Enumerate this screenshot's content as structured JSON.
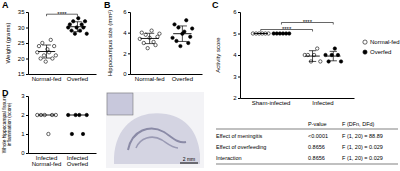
{
  "chart_data": [
    {
      "type": "strip",
      "panel": "A",
      "y_label": "Weight (grams)",
      "categories": [
        "Normal-fed",
        "Overfed"
      ],
      "values": [
        [
          22,
          24,
          20,
          25,
          21,
          19,
          23,
          22,
          26,
          20,
          24,
          21
        ],
        [
          30,
          31,
          29,
          32,
          28,
          30,
          33,
          29,
          31,
          30,
          32,
          28
        ]
      ],
      "mean": [
        22.25,
        30.25
      ],
      "error": [
        2.1,
        1.6
      ],
      "colors": [
        "#ffffff",
        "#000000"
      ],
      "ylim": [
        15,
        35
      ],
      "yticks": [
        15,
        20,
        25,
        30,
        35
      ],
      "annotations": [
        {
          "text": "****",
          "from": [
            "Normal-fed"
          ],
          "to": [
            "Overfed"
          ]
        }
      ]
    },
    {
      "type": "strip",
      "panel": "B",
      "y_label": "Hippocampus size (mm²)",
      "categories": [
        "Normal-fed",
        "Overfed"
      ],
      "values": [
        [
          3.4,
          4.0,
          3.0,
          3.8,
          2.5,
          3.5,
          4.2,
          3.1,
          2.8,
          3.6,
          3.9
        ],
        [
          3.5,
          4.8,
          3.2,
          4.5,
          2.7,
          3.9,
          4.1,
          5.2,
          3.0,
          3.6,
          4.4
        ]
      ],
      "mean": [
        3.44,
        3.9
      ],
      "error": [
        0.5,
        0.75
      ],
      "colors": [
        "#ffffff",
        "#000000"
      ],
      "ylim": [
        0,
        6
      ],
      "yticks": [
        0,
        2,
        4,
        6
      ]
    },
    {
      "type": "strip",
      "panel": "C",
      "y_label": "Activity score",
      "categories": [
        "Sham-infected",
        "Infected"
      ],
      "series": [
        {
          "name": "Normal-fed",
          "color": "#ffffff",
          "marker": "circle",
          "values": [
            [
              5,
              5,
              5,
              5,
              5,
              5
            ],
            [
              4,
              4,
              3.7,
              4,
              4.3,
              3.7
            ]
          ],
          "mean": [
            5,
            3.95
          ],
          "error": [
            0,
            0.25
          ]
        },
        {
          "name": "Overfed",
          "color": "#000000",
          "marker": "circle",
          "values": [
            [
              5,
              5,
              5,
              5,
              5,
              5
            ],
            [
              4,
              3.7,
              4,
              4.3,
              4,
              3.7
            ]
          ],
          "mean": [
            5,
            3.95
          ],
          "error": [
            0,
            0.22
          ]
        }
      ],
      "ylim": [
        2,
        6
      ],
      "yticks": [
        2,
        3,
        4,
        5,
        6
      ],
      "legend": "right",
      "annotations": [
        {
          "text": "****",
          "from": [
            "Sham-infected",
            "Normal-fed"
          ],
          "to": [
            "Infected",
            "Normal-fed"
          ]
        },
        {
          "text": "****",
          "from": [
            "Sham-infected",
            "Overfed"
          ],
          "to": [
            "Infected",
            "Overfed"
          ]
        }
      ]
    },
    {
      "type": "strip",
      "panel": "D",
      "y_label": "Whole hippocampal fissure inflammation (score)",
      "categories": [
        "Infected Normal-fed",
        "Infected Overfed"
      ],
      "values": [
        [
          2,
          2,
          2,
          1,
          2,
          2
        ],
        [
          2,
          1,
          2,
          2,
          1,
          2
        ]
      ],
      "median": [
        2,
        2
      ],
      "colors": [
        "#ffffff",
        "#000000"
      ],
      "ylim": [
        0,
        3
      ],
      "yticks": [
        0,
        1,
        2,
        3
      ]
    }
  ],
  "image_panel": {
    "scale_bar": "2 mm"
  },
  "table": {
    "header": [
      "P-value",
      "F (DFn, DFd)"
    ],
    "rows": [
      [
        "Effect of meningitis",
        "<0.0001",
        "F (1, 20) = 88.89"
      ],
      [
        "Effect of overfeeding",
        "0.8656",
        "F (1, 20) = 0.029"
      ],
      [
        "Interaction",
        "0.8656",
        "F (1, 20) = 0.029"
      ]
    ]
  }
}
